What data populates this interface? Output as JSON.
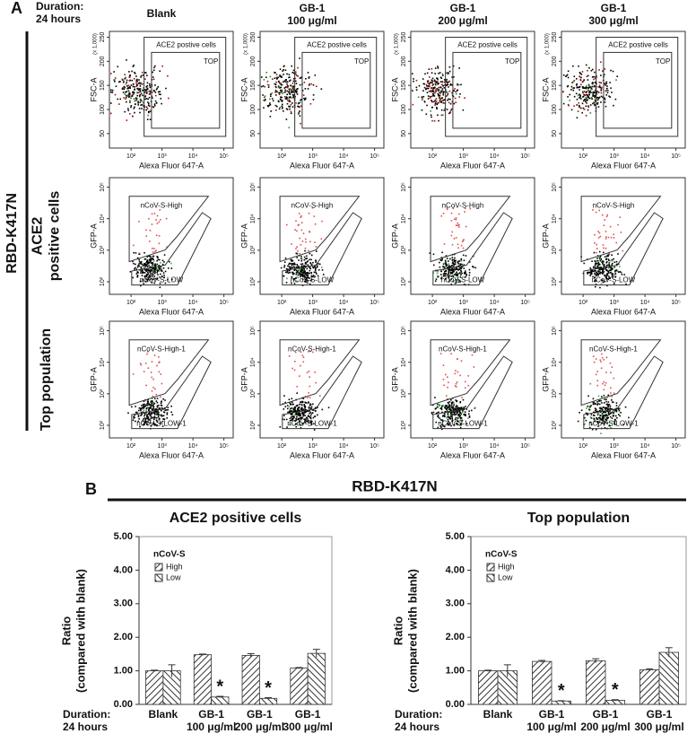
{
  "panel_a": {
    "label": "A",
    "duration": "Duration:",
    "duration_value": "24 hours",
    "group_label": "RBD-K417N",
    "columns": [
      {
        "name": "Blank"
      },
      {
        "name": "GB-1",
        "dose": "100 μg/ml"
      },
      {
        "name": "GB-1",
        "dose": "200 μg/ml"
      },
      {
        "name": "GB-1",
        "dose": "300 μg/ml"
      }
    ],
    "rows": [
      {
        "xlabel": "Alexa Fluor 647-A",
        "ylabel": "FSC-A",
        "y_multiplier": "(x 1,000)",
        "xlim": [
          20,
          200000
        ],
        "xscale": "log",
        "xticks": [
          {
            "value": 100,
            "label": "10²"
          },
          {
            "value": 1000,
            "label": "10³"
          },
          {
            "value": 10000,
            "label": "10⁴"
          },
          {
            "value": 100000,
            "label": "10⁵"
          }
        ],
        "ylim": [
          20,
          262
        ],
        "yticks": [
          50,
          100,
          150,
          200,
          250
        ],
        "gates": [
          "ACE2 postive cells",
          "TOP"
        ]
      },
      {
        "label": [
          "ACE2",
          "positive cells"
        ],
        "xlabel": "Alexa Fluor 647-A",
        "ylabel": "GFP-A",
        "xlim": [
          20,
          200000
        ],
        "xscale": "log",
        "xticks": [
          {
            "value": 100,
            "label": "10²"
          },
          {
            "value": 1000,
            "label": "10³"
          },
          {
            "value": 10000,
            "label": "10⁴"
          },
          {
            "value": 100000,
            "label": "10⁵"
          }
        ],
        "ylim": [
          40,
          200000
        ],
        "yscale": "log",
        "yticks": [
          {
            "value": 100,
            "label": "10²"
          },
          {
            "value": 1000,
            "label": "10³"
          },
          {
            "value": 10000,
            "label": "10⁴"
          },
          {
            "value": 100000,
            "label": "10⁵"
          }
        ],
        "gates": [
          "nCoV-S-High",
          "nCoV-S-LOW"
        ]
      },
      {
        "label": [
          "Top population"
        ],
        "xlabel": "Alexa Fluor 647-A",
        "ylabel": "GFP-A",
        "xlim": [
          20,
          200000
        ],
        "xscale": "log",
        "xticks": [
          {
            "value": 100,
            "label": "10²"
          },
          {
            "value": 1000,
            "label": "10³"
          },
          {
            "value": 10000,
            "label": "10⁴"
          },
          {
            "value": 100000,
            "label": "10⁵"
          }
        ],
        "ylim": [
          40,
          200000
        ],
        "yscale": "log",
        "yticks": [
          {
            "value": 100,
            "label": "10²"
          },
          {
            "value": 1000,
            "label": "10³"
          },
          {
            "value": 10000,
            "label": "10⁴"
          },
          {
            "value": 100000,
            "label": "10⁵"
          }
        ],
        "gates": [
          "nCoV-S-High-1",
          "nCoV-S-LOW-1"
        ]
      }
    ]
  },
  "panel_b": {
    "label": "B",
    "group_label": "RBD-K417N"
  },
  "chart_data": [
    {
      "type": "bar",
      "title": "ACE2 positive cells",
      "ylabel": "Ratio",
      "ylabel_sub": "(compared with blank)",
      "xlabel": "Duration:",
      "xlabel_sub": "24 hours",
      "categories": [
        "Blank",
        "GB-1",
        "GB-1",
        "GB-1"
      ],
      "category_doses": [
        null,
        "100 μg/ml",
        "200 μg/ml",
        "300 μg/ml"
      ],
      "legend_title": "nCoV-S",
      "series": [
        {
          "name": "High",
          "hatch": "forward",
          "color": "#333333",
          "values": [
            1.0,
            1.48,
            1.46,
            1.08
          ],
          "errors": [
            0.02,
            0.02,
            0.05,
            0.02
          ]
        },
        {
          "name": "Low",
          "hatch": "back",
          "color": "#333333",
          "values": [
            1.0,
            0.22,
            0.18,
            1.52
          ],
          "errors": [
            0.18,
            0.02,
            0.02,
            0.12
          ],
          "significance": [
            null,
            "*",
            "*",
            null
          ]
        }
      ],
      "ylim": [
        0,
        5
      ],
      "yticks": [
        {
          "value": 0,
          "label": "0.00"
        },
        {
          "value": 1,
          "label": "1.00"
        },
        {
          "value": 2,
          "label": "2.00"
        },
        {
          "value": 3,
          "label": "3.00"
        },
        {
          "value": 4,
          "label": "4.00"
        },
        {
          "value": 5,
          "label": "5.00"
        }
      ]
    },
    {
      "type": "bar",
      "title": "Top population",
      "ylabel": "Ratio",
      "ylabel_sub": "(compared with blank)",
      "xlabel": "Duration:",
      "xlabel_sub": "24 hours",
      "categories": [
        "Blank",
        "GB-1",
        "GB-1",
        "GB-1"
      ],
      "category_doses": [
        null,
        "100 μg/ml",
        "200 μg/ml",
        "300 μg/ml"
      ],
      "legend_title": "nCoV-S",
      "series": [
        {
          "name": "High",
          "hatch": "forward",
          "color": "#333333",
          "values": [
            1.0,
            1.28,
            1.3,
            1.03
          ],
          "errors": [
            0.02,
            0.03,
            0.06,
            0.03
          ]
        },
        {
          "name": "Low",
          "hatch": "back",
          "color": "#333333",
          "values": [
            1.0,
            0.1,
            0.12,
            1.55
          ],
          "errors": [
            0.18,
            0.01,
            0.02,
            0.14
          ],
          "significance": [
            null,
            "*",
            "*",
            null
          ]
        }
      ],
      "ylim": [
        0,
        5
      ],
      "yticks": [
        {
          "value": 0,
          "label": "0.00"
        },
        {
          "value": 1,
          "label": "1.00"
        },
        {
          "value": 2,
          "label": "2.00"
        },
        {
          "value": 3,
          "label": "3.00"
        },
        {
          "value": 4,
          "label": "4.00"
        },
        {
          "value": 5,
          "label": "5.00"
        }
      ]
    }
  ]
}
